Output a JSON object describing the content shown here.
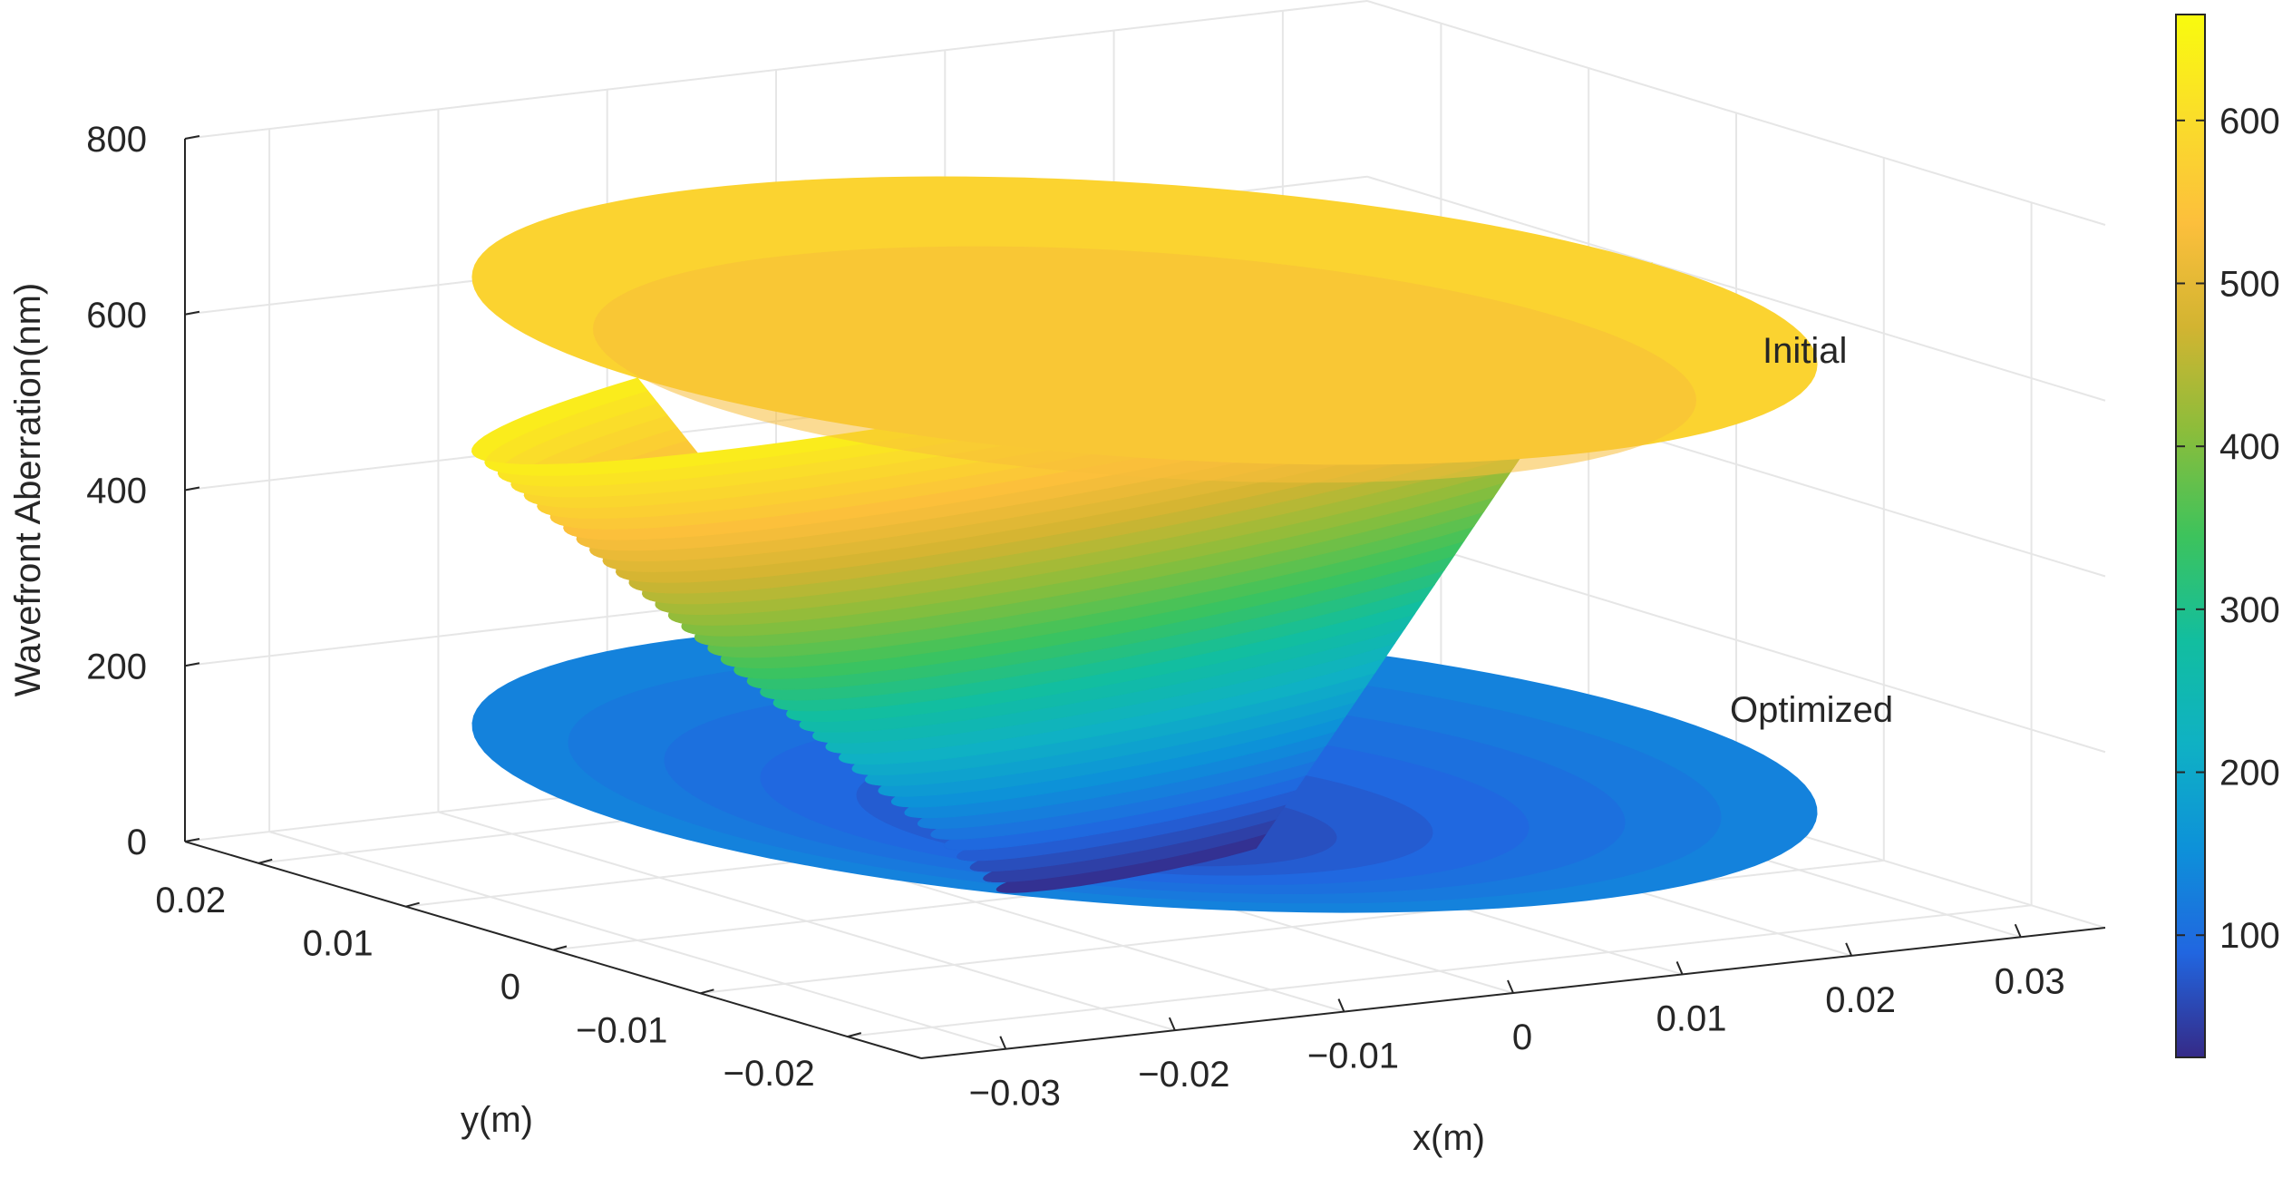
{
  "chart_data": {
    "type": "surface3d",
    "title": "",
    "zlabel": "Wavefront Aberration(nm)",
    "xlabel": "x(m)",
    "ylabel": "y(m)",
    "zlim": [
      0,
      800
    ],
    "xlim": [
      -0.035,
      0.035
    ],
    "ylim": [
      -0.025,
      0.025
    ],
    "z_ticks": [
      "0",
      "200",
      "400",
      "600",
      "800"
    ],
    "y_ticks": [
      "0.02",
      "0.01",
      "0",
      "−0.01",
      "−0.02"
    ],
    "x_ticks": [
      "−0.03",
      "−0.02",
      "−0.01",
      "0",
      "0.01",
      "0.02",
      "0.03"
    ],
    "grid": true,
    "colormap": "parula",
    "colorbar": {
      "ticks": [
        "100",
        "200",
        "300",
        "400",
        "500",
        "600"
      ],
      "range": [
        25,
        665
      ],
      "placement": "right"
    },
    "annotations": [
      "Initial",
      "Optimized"
    ],
    "surfaces": [
      {
        "name": "Initial",
        "shape": "cone",
        "aperture_radius": 0.03,
        "z_center": 25,
        "z_edge": 640
      },
      {
        "name": "Optimized",
        "shape": "disc",
        "aperture_radius": 0.03,
        "z_center": 40,
        "z_edge": 130
      }
    ]
  },
  "colors": {
    "parula": [
      "#352a87",
      "#2166e0",
      "#0d91d9",
      "#0fb1c4",
      "#12be9f",
      "#3dc35c",
      "#8bbd3b",
      "#d2b431",
      "#fcbf3c",
      "#fadd2a",
      "#f9fb0e"
    ],
    "axis": "#262626",
    "grid": "#e6e6e6"
  }
}
